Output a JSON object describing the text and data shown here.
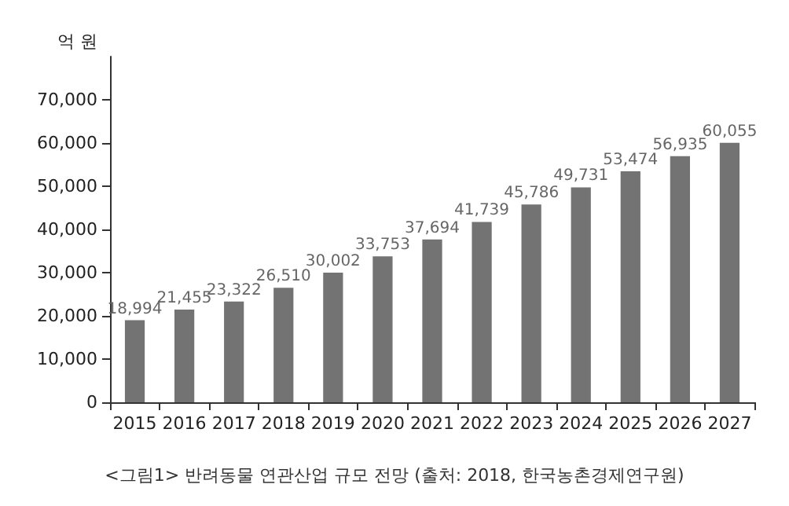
{
  "chart_data": {
    "type": "bar",
    "ylabel": "억 원",
    "categories": [
      "2015",
      "2016",
      "2017",
      "2018",
      "2019",
      "2020",
      "2021",
      "2022",
      "2023",
      "2024",
      "2025",
      "2026",
      "2027"
    ],
    "values": [
      18994,
      21455,
      23322,
      26510,
      30002,
      33753,
      37694,
      41739,
      45786,
      49731,
      53474,
      56935,
      60055
    ],
    "value_labels": [
      "18,994",
      "21,455",
      "23,322",
      "26,510",
      "30,002",
      "33,753",
      "37,694",
      "41,739",
      "45,786",
      "49,731",
      "53,474",
      "56,935",
      "60,055"
    ],
    "color": "#737373",
    "ylim": [
      0,
      80000
    ],
    "yticks": [
      0,
      {
        "value": 10000,
        "label": "10,000"
      },
      {
        "value": 20000,
        "label": "20,000"
      },
      {
        "value": 30000,
        "label": "30,000"
      },
      {
        "value": 40000,
        "label": "40,000"
      },
      {
        "value": 50000,
        "label": "50,000"
      },
      {
        "value": 60000,
        "label": "60,000"
      },
      {
        "value": 70000,
        "label": "70,000"
      }
    ],
    "grid": false,
    "annotations": [
      "<그림1> 반려동물 연관산업 규모 전망 (출처: 2018, 한국농촌경제연구원)"
    ]
  }
}
